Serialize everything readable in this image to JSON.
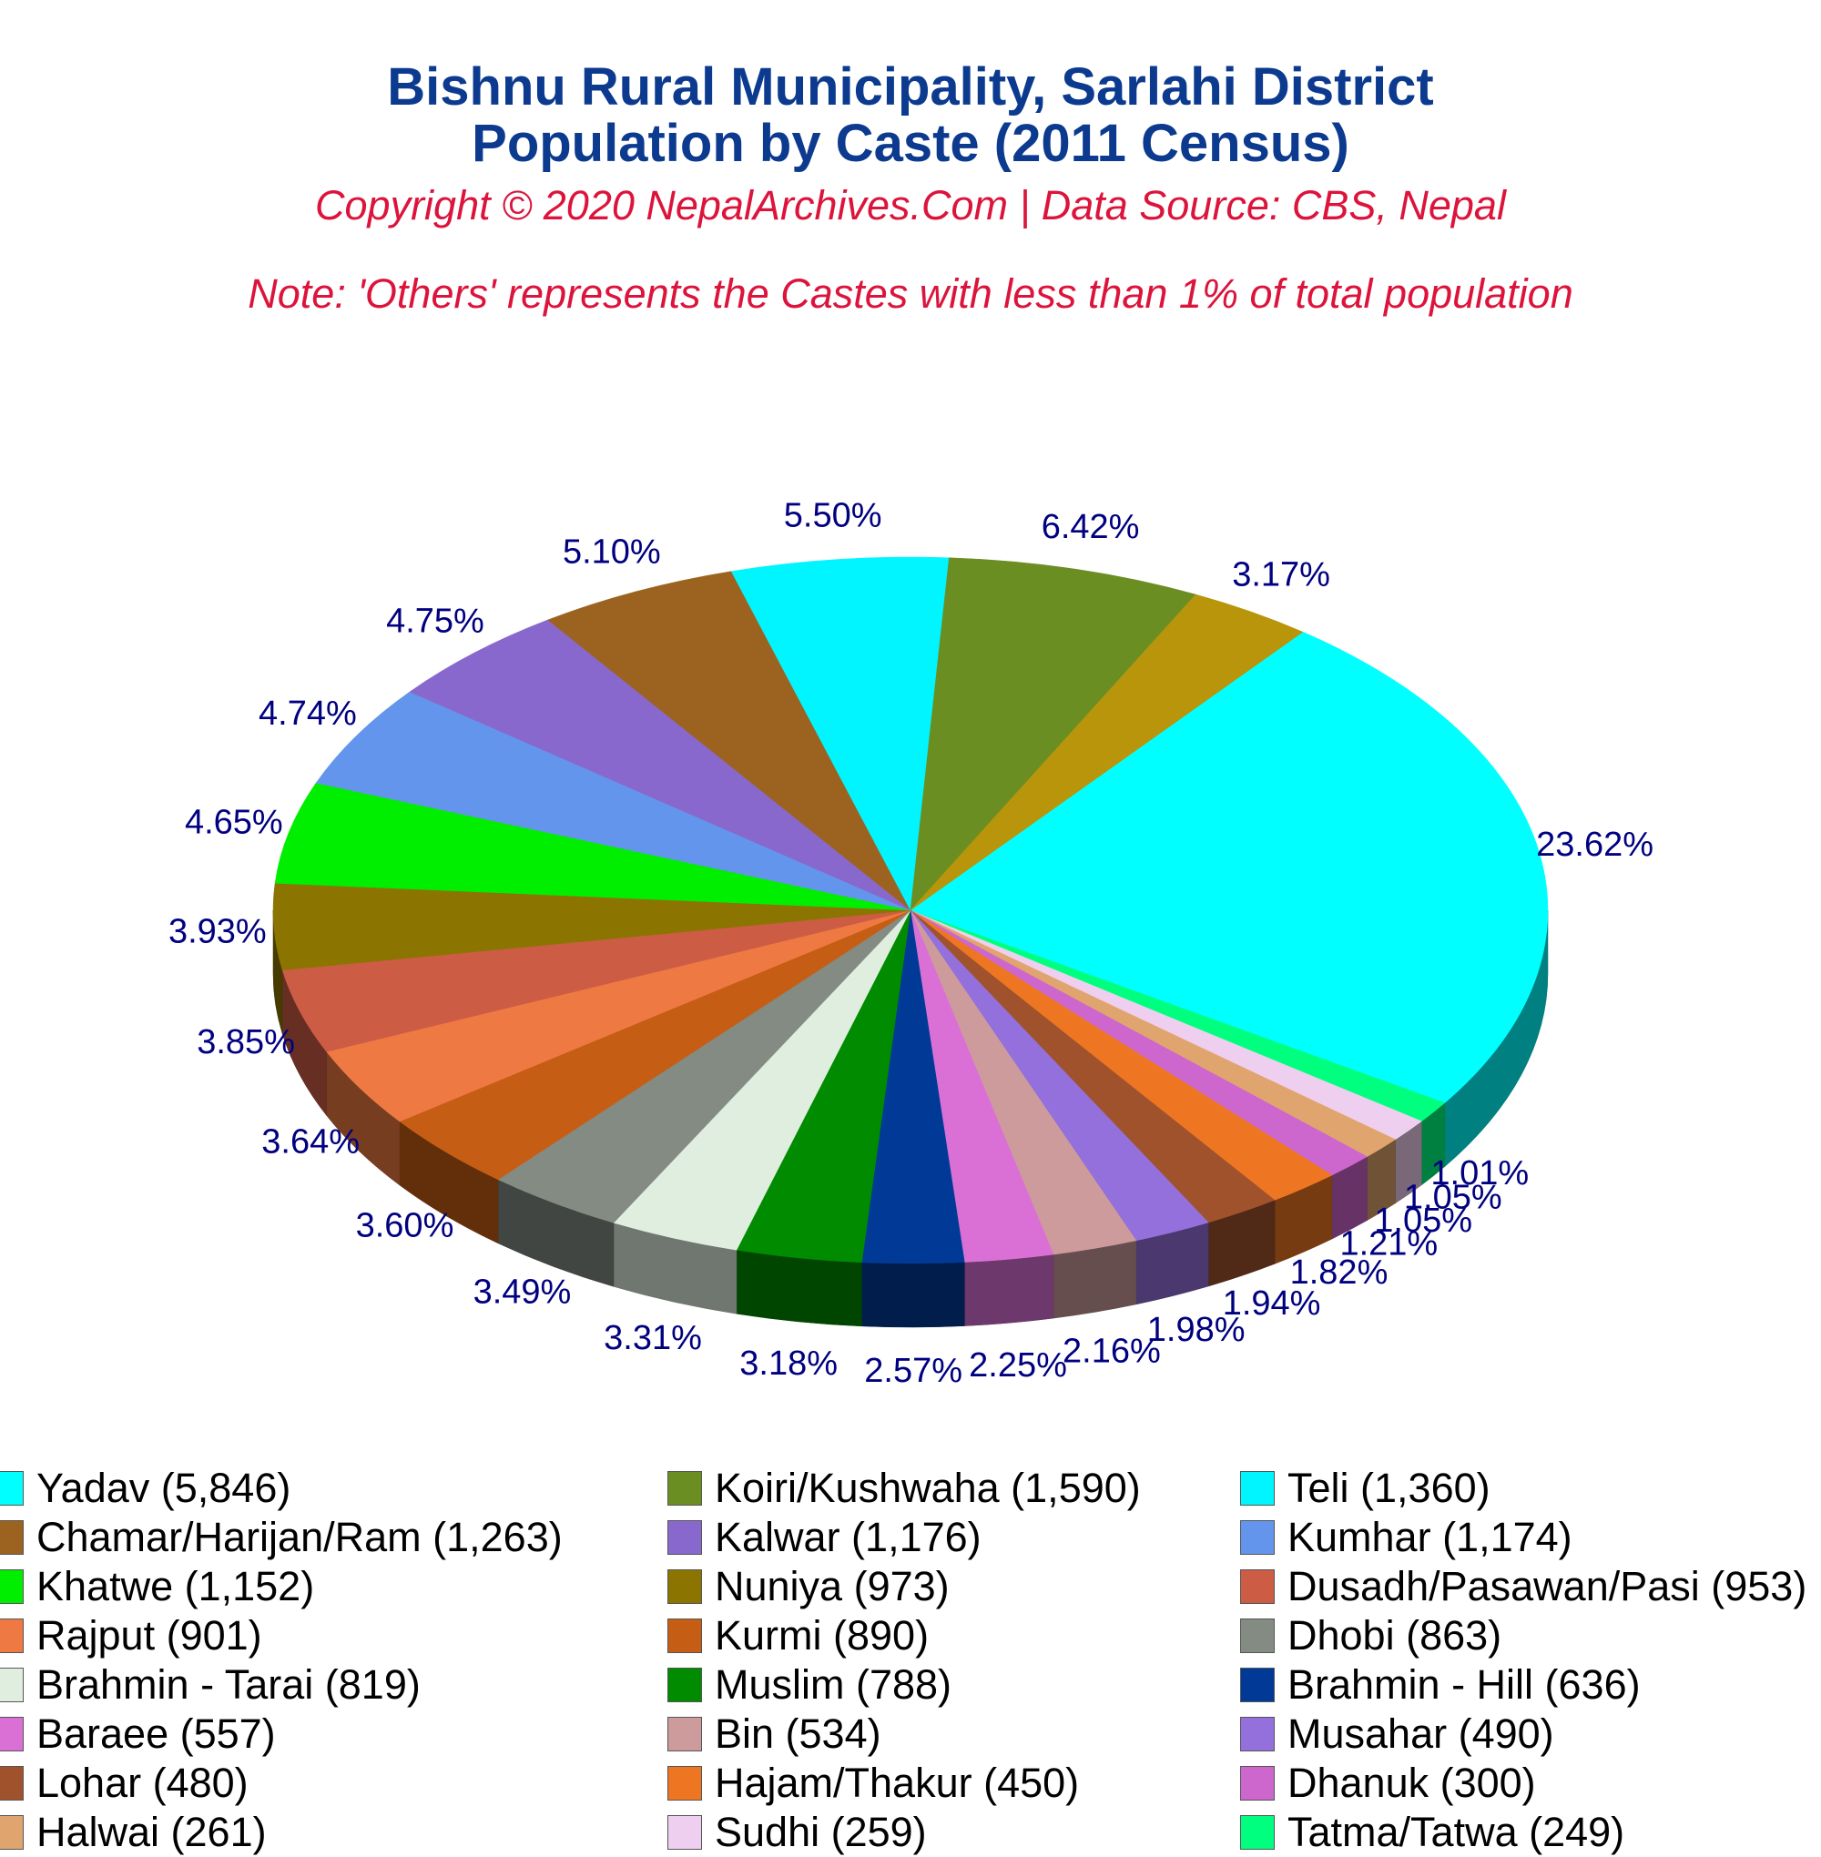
{
  "header": {
    "title_line1": "Bishnu Rural Municipality, Sarlahi District",
    "title_line2": "Population by Caste (2011 Census)",
    "subtitle": "Copyright © 2020 NepalArchives.Com | Data Source: CBS, Nepal",
    "note": "Note: 'Others' represents the Castes with less than 1% of total population"
  },
  "chart_data": {
    "type": "pie",
    "style": "3d",
    "slices": [
      {
        "label": "Yadav (5,846)",
        "percent": 23.62,
        "percent_label": "23.62%",
        "color": "#00ffff"
      },
      {
        "label": "Tatma/Tatwa (249)",
        "percent": 1.01,
        "percent_label": "1.01%",
        "color": "#00ff7f"
      },
      {
        "label": "Sudhi (259)",
        "percent": 1.05,
        "percent_label": "1.05%",
        "color": "#efcff0"
      },
      {
        "label": "Halwai (261)",
        "percent": 1.05,
        "percent_label": "1.05%",
        "color": "#e0a56e"
      },
      {
        "label": "Dhanuk (300)",
        "percent": 1.21,
        "percent_label": "1.21%",
        "color": "#cd66cd"
      },
      {
        "label": "Hajam/Thakur (450)",
        "percent": 1.82,
        "percent_label": "1.82%",
        "color": "#ee7622"
      },
      {
        "label": "Lohar (480)",
        "percent": 1.94,
        "percent_label": "1.94%",
        "color": "#a0522d"
      },
      {
        "label": "Musahar (490)",
        "percent": 1.98,
        "percent_label": "1.98%",
        "color": "#9370db"
      },
      {
        "label": "Bin (534)",
        "percent": 2.16,
        "percent_label": "2.16%",
        "color": "#cd9b9b"
      },
      {
        "label": "Baraee (557)",
        "percent": 2.25,
        "percent_label": "2.25%",
        "color": "#da70d6"
      },
      {
        "label": "Brahmin - Hill (636)",
        "percent": 2.57,
        "percent_label": "2.57%",
        "color": "#003a96"
      },
      {
        "label": "Muslim (788)",
        "percent": 3.18,
        "percent_label": "3.18%",
        "color": "#008b00"
      },
      {
        "label": "Brahmin - Tarai (819)",
        "percent": 3.31,
        "percent_label": "3.31%",
        "color": "#e0eee0"
      },
      {
        "label": "Dhobi (863)",
        "percent": 3.49,
        "percent_label": "3.49%",
        "color": "#838b83"
      },
      {
        "label": "Kurmi (890)",
        "percent": 3.6,
        "percent_label": "3.60%",
        "color": "#c65d14"
      },
      {
        "label": "Rajput (901)",
        "percent": 3.64,
        "percent_label": "3.64%",
        "color": "#ee7942"
      },
      {
        "label": "Dusadh/Pasawan/Pasi (953)",
        "percent": 3.85,
        "percent_label": "3.85%",
        "color": "#cd5c45"
      },
      {
        "label": "Nuniya (973)",
        "percent": 3.93,
        "percent_label": "3.93%",
        "color": "#8b7500"
      },
      {
        "label": "Khatwe (1,152)",
        "percent": 4.65,
        "percent_label": "4.65%",
        "color": "#00ee00"
      },
      {
        "label": "Kumhar (1,174)",
        "percent": 4.74,
        "percent_label": "4.74%",
        "color": "#6495ed"
      },
      {
        "label": "Kalwar (1,176)",
        "percent": 4.75,
        "percent_label": "4.75%",
        "color": "#8968cd"
      },
      {
        "label": "Chamar/Harijan/Ram (1,263)",
        "percent": 5.1,
        "percent_label": "5.10%",
        "color": "#9c6320"
      },
      {
        "label": "Teli (1,360)",
        "percent": 5.5,
        "percent_label": "5.50%",
        "color": "#00f5ff"
      },
      {
        "label": "Koiri/Kushwaha (1,590)",
        "percent": 6.42,
        "percent_label": "6.42%",
        "color": "#6b8e23"
      },
      {
        "label": "Others",
        "percent": 3.17,
        "percent_label": "3.17%",
        "color": "#b8950b"
      }
    ],
    "label_color": "#000080"
  },
  "legend": [
    {
      "label": "Yadav (5,846)",
      "color": "#00ffff"
    },
    {
      "label": "Koiri/Kushwaha (1,590)",
      "color": "#6b8e23"
    },
    {
      "label": "Teli (1,360)",
      "color": "#00f5ff"
    },
    {
      "label": "Chamar/Harijan/Ram (1,263)",
      "color": "#9c6320"
    },
    {
      "label": "Kalwar (1,176)",
      "color": "#8968cd"
    },
    {
      "label": "Kumhar (1,174)",
      "color": "#6495ed"
    },
    {
      "label": "Khatwe (1,152)",
      "color": "#00ee00"
    },
    {
      "label": "Nuniya (973)",
      "color": "#8b7500"
    },
    {
      "label": "Dusadh/Pasawan/Pasi (953)",
      "color": "#cd5c45"
    },
    {
      "label": "Rajput (901)",
      "color": "#ee7942"
    },
    {
      "label": "Kurmi (890)",
      "color": "#c65d14"
    },
    {
      "label": "Dhobi (863)",
      "color": "#838b83"
    },
    {
      "label": "Brahmin - Tarai (819)",
      "color": "#e0eee0"
    },
    {
      "label": "Muslim (788)",
      "color": "#008b00"
    },
    {
      "label": "Brahmin - Hill (636)",
      "color": "#003a96"
    },
    {
      "label": "Baraee (557)",
      "color": "#da70d6"
    },
    {
      "label": "Bin (534)",
      "color": "#cd9b9b"
    },
    {
      "label": "Musahar (490)",
      "color": "#9370db"
    },
    {
      "label": "Lohar (480)",
      "color": "#a0522d"
    },
    {
      "label": "Hajam/Thakur (450)",
      "color": "#ee7622"
    },
    {
      "label": "Dhanuk (300)",
      "color": "#cd66cd"
    },
    {
      "label": "Halwai (261)",
      "color": "#e0a56e"
    },
    {
      "label": "Sudhi (259)",
      "color": "#efcff0"
    },
    {
      "label": "Tatma/Tatwa (249)",
      "color": "#00ff7f"
    }
  ]
}
